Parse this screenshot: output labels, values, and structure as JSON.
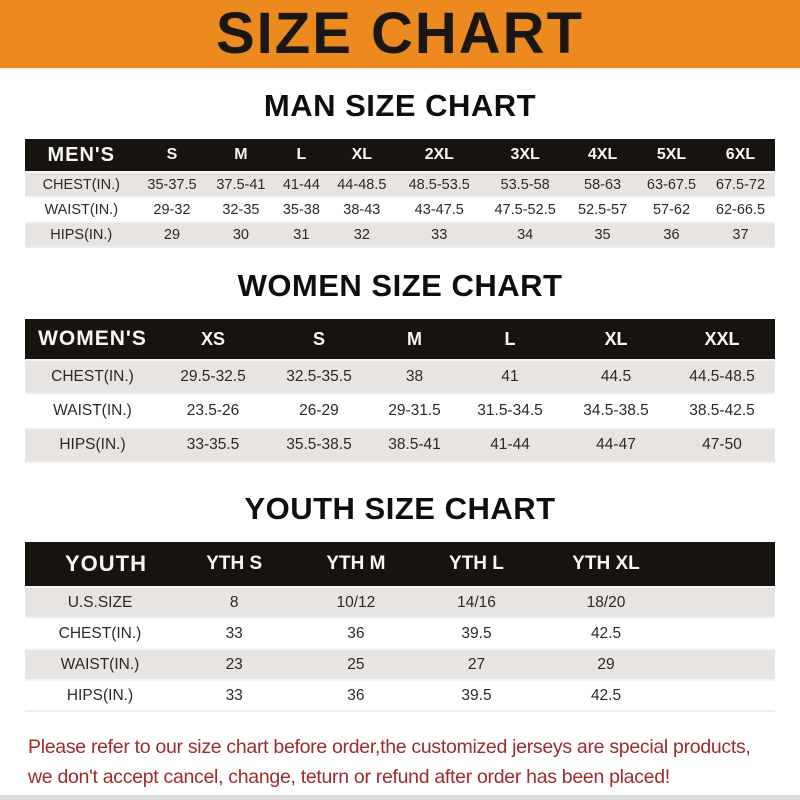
{
  "banner": {
    "title": "SIZE CHART",
    "bg_color": "#EC8A20",
    "text_color": "#191613"
  },
  "colors": {
    "table_header_bg": "#17130f",
    "table_header_text": "#f7f7f7",
    "row_stripe": "#e7e4e1",
    "footer_text": "#9e2b2b"
  },
  "sections": [
    {
      "heading": "MAN SIZE CHART",
      "table": {
        "corner": "MEN'S",
        "columns": [
          "S",
          "M",
          "L",
          "XL",
          "2XL",
          "3XL",
          "4XL",
          "5XL",
          "6XL"
        ],
        "rows": [
          {
            "label": "CHEST(IN.)",
            "values": [
              "35-37.5",
              "37.5-41",
              "41-44",
              "44-48.5",
              "48.5-53.5",
              "53.5-58",
              "58-63",
              "63-67.5",
              "67.5-72"
            ]
          },
          {
            "label": "WAIST(IN.)",
            "values": [
              "29-32",
              "32-35",
              "35-38",
              "38-43",
              "43-47.5",
              "47.5-52.5",
              "52.5-57",
              "57-62",
              "62-66.5"
            ]
          },
          {
            "label": "HIPS(IN.)",
            "values": [
              "29",
              "30",
              "31",
              "32",
              "33",
              "34",
              "35",
              "36",
              "37"
            ]
          }
        ]
      }
    },
    {
      "heading": "WOMEN SIZE CHART",
      "table": {
        "corner": "WOMEN'S",
        "columns": [
          "XS",
          "S",
          "M",
          "L",
          "XL",
          "XXL"
        ],
        "rows": [
          {
            "label": "CHEST(IN.)",
            "values": [
              "29.5-32.5",
              "32.5-35.5",
              "38",
              "41",
              "44.5",
              "44.5-48.5"
            ]
          },
          {
            "label": "WAIST(IN.)",
            "values": [
              "23.5-26",
              "26-29",
              "29-31.5",
              "31.5-34.5",
              "34.5-38.5",
              "38.5-42.5"
            ]
          },
          {
            "label": "HIPS(IN.)",
            "values": [
              "33-35.5",
              "35.5-38.5",
              "38.5-41",
              "41-44",
              "44-47",
              "47-50"
            ]
          }
        ]
      }
    },
    {
      "heading": "YOUTH SIZE CHART",
      "table": {
        "corner": "YOUTH",
        "columns": [
          "YTH S",
          "YTH M",
          "YTH L",
          "YTH XL"
        ],
        "rows": [
          {
            "label": "U.S.SIZE",
            "values": [
              "8",
              "10/12",
              "14/16",
              "18/20"
            ]
          },
          {
            "label": "CHEST(IN.)",
            "values": [
              "33",
              "36",
              "39.5",
              "42.5"
            ]
          },
          {
            "label": "WAIST(IN.)",
            "values": [
              "23",
              "25",
              "27",
              "29"
            ]
          },
          {
            "label": "HIPS(IN.)",
            "values": [
              "33",
              "36",
              "39.5",
              "42.5"
            ]
          }
        ]
      }
    }
  ],
  "footer": {
    "line1": "Please refer to our size chart before order,the customized jerseys are special products,",
    "line2": "we don't accept cancel, change, teturn or refund after order has been placed!"
  }
}
